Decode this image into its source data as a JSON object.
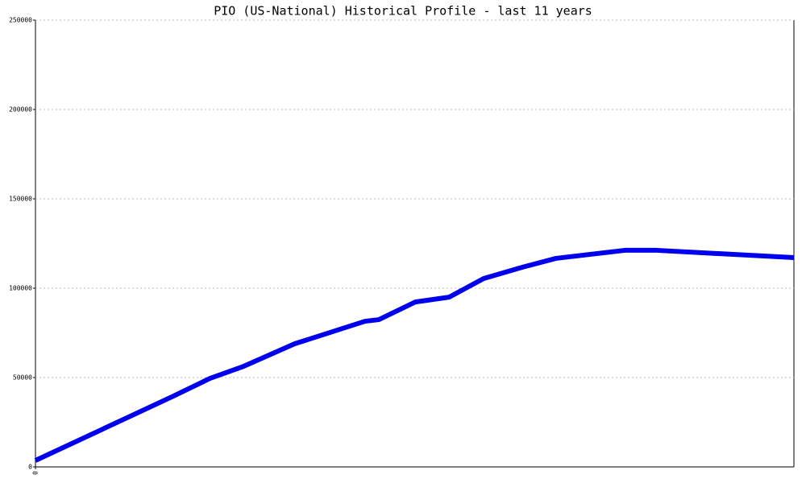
{
  "chart_data": {
    "type": "line",
    "title": "PIO (US-National) Historical Profile - last 11 years",
    "x": [
      0,
      2,
      2.53,
      3.02,
      3.76,
      4.78,
      4.98,
      5.51,
      6.0,
      6.5,
      7.06,
      7.55,
      8.55,
      9.01,
      11
    ],
    "series": [
      {
        "color": "#0000ee",
        "values": [
          3600,
          39600,
          49500,
          56300,
          68900,
          81500,
          82400,
          92300,
          95000,
          105400,
          111700,
          116700,
          121200,
          121200,
          117100
        ]
      }
    ],
    "xlim": [
      0,
      11
    ],
    "xticks": [
      0
    ],
    "ylim": [
      0,
      250000
    ],
    "yticks": [
      0,
      50000,
      100000,
      150000,
      200000,
      250000
    ],
    "grid": true
  }
}
